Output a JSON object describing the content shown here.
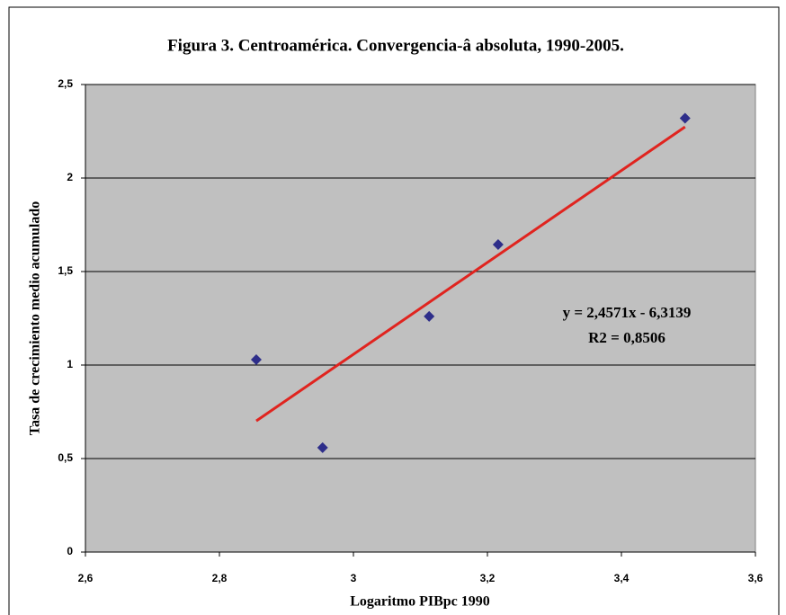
{
  "chart_data": {
    "type": "scatter",
    "title": "Figura 3. Centroamérica. Convergencia-â  absoluta, 1990-2005.",
    "x_label": "Logaritmo PIBpc 1990",
    "y_label": "Tasa de crecimiento medio acumulado",
    "series": [
      {
        "color": "#2e2e8a",
        "x": [
          2.855,
          2.954,
          3.113,
          3.216,
          3.495
        ],
        "values": [
          1.029,
          0.558,
          1.26,
          1.644,
          2.32
        ]
      }
    ],
    "trendline": {
      "slope": 2.4571,
      "intercept": -6.3139,
      "color": "#e0241f",
      "label": "y = 2,4571x - 6,3139",
      "r2_label": "R2 = 0,8506"
    },
    "xlim": [
      2.6,
      3.6
    ],
    "xticks": [
      {
        "value": 2.6,
        "label": "2,6"
      },
      {
        "value": 2.8,
        "label": "2,8"
      },
      3,
      {
        "value": 3.2,
        "label": "3,2"
      },
      {
        "value": 3.4,
        "label": "3,4"
      },
      {
        "value": 3.6,
        "label": "3,6"
      }
    ],
    "ylim": [
      0,
      2.5
    ],
    "yticks": [
      0,
      {
        "value": 0.5,
        "label": "0,5"
      },
      1,
      {
        "value": 1.5,
        "label": "1,5"
      },
      2,
      {
        "value": 2.5,
        "label": "2,5"
      }
    ],
    "grid": true
  }
}
